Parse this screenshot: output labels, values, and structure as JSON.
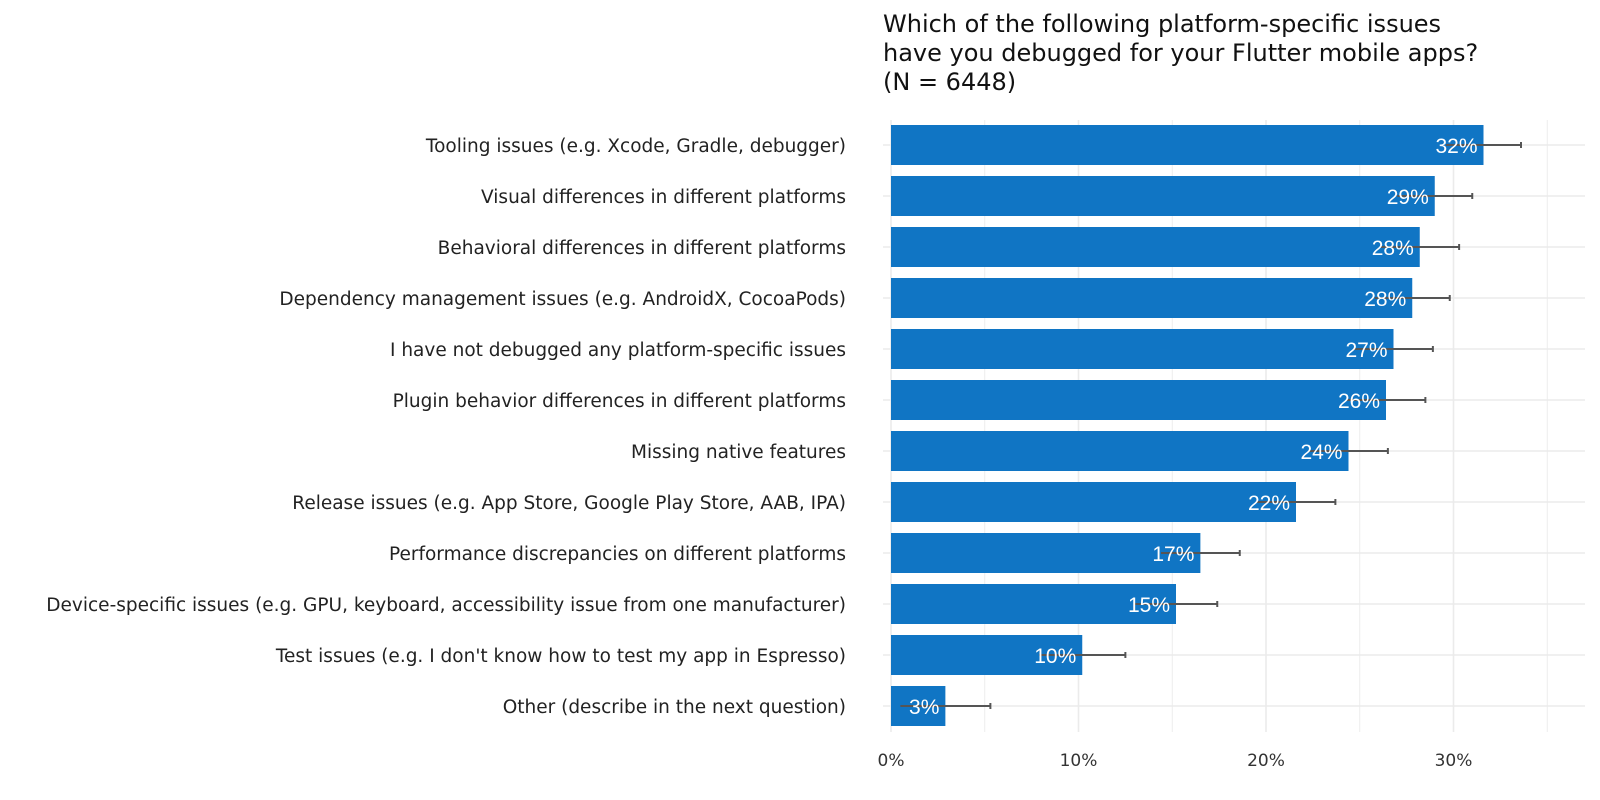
{
  "chart_data": {
    "type": "bar",
    "orientation": "horizontal",
    "title": "Which of the following platform-specific issues\nhave you debugged for your Flutter mobile apps?\n(N = 6448)",
    "categories": [
      "Tooling issues (e.g. Xcode, Gradle, debugger)",
      "Visual differences in different platforms",
      "Behavioral differences in different platforms",
      "Dependency management issues (e.g. AndroidX, CocoaPods)",
      "I have not debugged any platform-specific issues",
      "Plugin behavior differences in different platforms",
      "Missing native features",
      "Release issues (e.g. App Store, Google Play Store, AAB, IPA)",
      "Performance discrepancies on different platforms",
      "Device-specific issues (e.g. GPU, keyboard, accessibility issue from one manufacturer)",
      "Test issues (e.g. I don't know how to test my app in Espresso)",
      "Other (describe in the next question)"
    ],
    "values": [
      31.6,
      29.0,
      28.2,
      27.8,
      26.8,
      26.4,
      24.4,
      21.6,
      16.5,
      15.2,
      10.2,
      2.9
    ],
    "error_upper": [
      33.6,
      31.0,
      30.3,
      29.8,
      28.9,
      28.5,
      26.5,
      23.7,
      18.6,
      17.4,
      12.5,
      5.3
    ],
    "data_labels": [
      "32%",
      "29%",
      "28%",
      "28%",
      "27%",
      "26%",
      "24%",
      "22%",
      "17%",
      "15%",
      "10%",
      "3%"
    ],
    "xlim": [
      0,
      35
    ],
    "x_ticks": [
      0,
      10,
      20,
      30
    ],
    "x_tick_labels": [
      "0%",
      "10%",
      "20%",
      "30%"
    ],
    "grid": true,
    "colors": {
      "bar": "#1075c4",
      "grid": "#ebebeb",
      "error_bar": "#555555"
    }
  }
}
